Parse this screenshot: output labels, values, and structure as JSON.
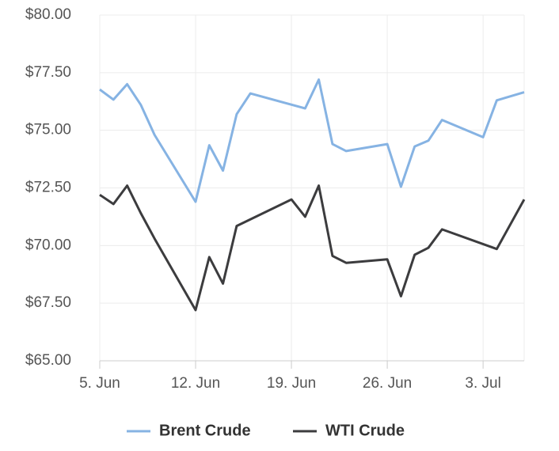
{
  "chart_data": {
    "type": "line",
    "xlim": [
      "06-05",
      "07-06"
    ],
    "xticks": [
      {
        "value": "06-05",
        "label": "5. Jun"
      },
      {
        "value": "06-12",
        "label": "12. Jun"
      },
      {
        "value": "06-19",
        "label": "19. Jun"
      },
      {
        "value": "06-26",
        "label": "26. Jun"
      },
      {
        "value": "07-03",
        "label": "3. Jul"
      }
    ],
    "ylim": [
      65,
      80
    ],
    "yticks": [
      {
        "value": 65,
        "label": "$65.00"
      },
      {
        "value": 67.5,
        "label": "$67.50"
      },
      {
        "value": 70,
        "label": "$70.00"
      },
      {
        "value": 72.5,
        "label": "$72.50"
      },
      {
        "value": 75,
        "label": "$75.00"
      },
      {
        "value": 77.5,
        "label": "$77.50"
      },
      {
        "value": 80,
        "label": "$80.00"
      }
    ],
    "grid": true,
    "legend": "bottom",
    "series": [
      {
        "name": "Brent Crude",
        "color": "#86b3e3",
        "x": [
          "06-05",
          "06-06",
          "06-07",
          "06-08",
          "06-09",
          "06-12",
          "06-13",
          "06-14",
          "06-15",
          "06-16",
          "06-20",
          "06-21",
          "06-22",
          "06-23",
          "06-26",
          "06-27",
          "06-28",
          "06-29",
          "06-30",
          "07-03",
          "07-04",
          "07-06"
        ],
        "values": [
          76.77,
          76.33,
          77.0,
          76.1,
          74.8,
          71.9,
          74.35,
          73.25,
          75.7,
          76.6,
          75.95,
          77.2,
          74.4,
          74.1,
          74.4,
          72.55,
          74.3,
          74.55,
          75.45,
          74.7,
          76.3,
          76.65
        ]
      },
      {
        "name": "WTI Crude",
        "color": "#3c3c3e",
        "x": [
          "06-05",
          "06-06",
          "06-07",
          "06-08",
          "06-09",
          "06-12",
          "06-13",
          "06-14",
          "06-15",
          "06-19",
          "06-20",
          "06-21",
          "06-22",
          "06-23",
          "06-26",
          "06-27",
          "06-28",
          "06-29",
          "06-30",
          "07-04",
          "07-06"
        ],
        "values": [
          72.2,
          71.8,
          72.6,
          71.4,
          70.3,
          67.2,
          69.5,
          68.35,
          70.85,
          72.0,
          71.25,
          72.6,
          69.55,
          69.25,
          69.4,
          67.8,
          69.6,
          69.9,
          70.7,
          69.85,
          72.0
        ]
      }
    ]
  }
}
